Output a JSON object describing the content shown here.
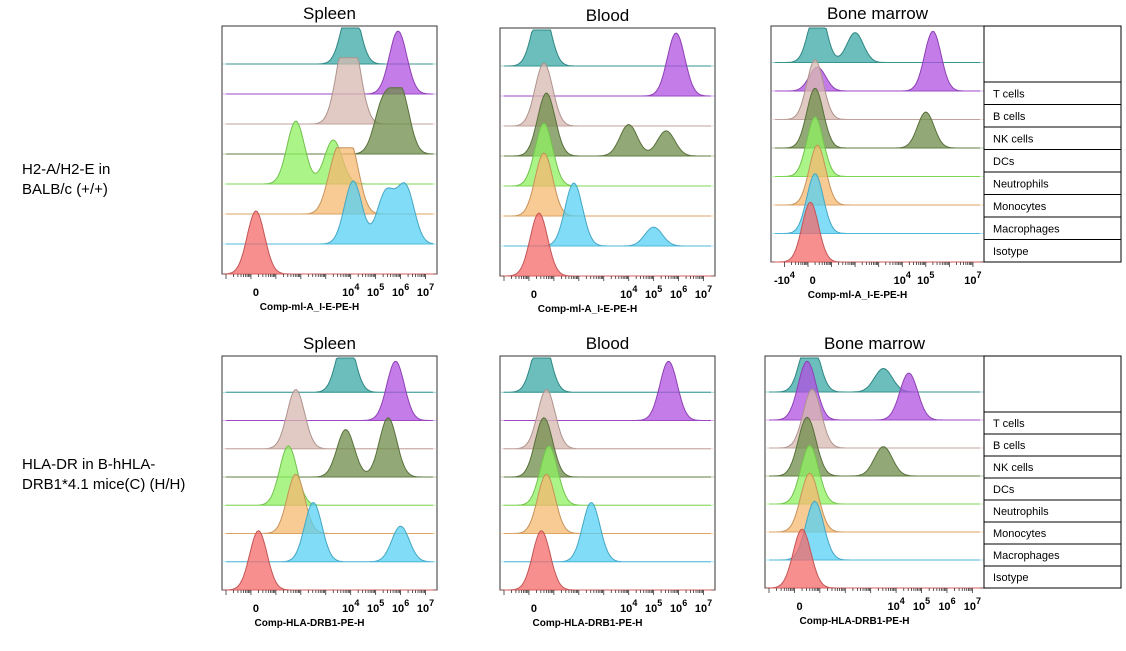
{
  "rows": [
    {
      "label_line1": "H2-A/H2-E in",
      "label_line2": "BALB/c (+/+)",
      "axis_title": "Comp-ml-A_I-E-PE-H"
    },
    {
      "label_line1": "HLA-DR in B-hHLA-",
      "label_line2": "DRB1*4.1 mice(C) (H/H)",
      "axis_title": "Comp-HLA-DRB1-PE-H"
    }
  ],
  "panel_titles": [
    "Spleen",
    "Blood",
    "Bone marrow"
  ],
  "legend": [
    "T cells",
    "B cells",
    "NK cells",
    "DCs",
    "Neutrophils",
    "Monocytes",
    "Macrophages",
    "Isotype"
  ],
  "colors": {
    "T cells": "#3aa8a4",
    "B cells": "#b050e0",
    "NK cells": "#d8b8b0",
    "DCs": "#6e8c4a",
    "Neutrophils": "#8ef060",
    "Monocytes": "#f6b870",
    "Macrophages": "#56d0f4",
    "Isotype": "#f46a6a"
  },
  "chart_data": [
    {
      "type": "area",
      "title": "Spleen",
      "xlabel": "Comp-ml-A_I-E-PE-H",
      "x_scale": "biexponential",
      "x_ticks": [
        "0",
        "10^4",
        "10^5",
        "10^6",
        "10^7"
      ],
      "series": [
        {
          "name": "T cells",
          "peaks": [
            [
              4.0,
              1.0
            ]
          ]
        },
        {
          "name": "B cells",
          "peaks": [
            [
              5.9,
              1.0
            ]
          ]
        },
        {
          "name": "NK cells",
          "peaks": [
            [
              3.7,
              0.9
            ],
            [
              4.1,
              1.0
            ]
          ]
        },
        {
          "name": "DCs",
          "peaks": [
            [
              5.3,
              0.8
            ],
            [
              6.0,
              1.0
            ]
          ]
        },
        {
          "name": "Neutrophils",
          "peaks": [
            [
              1.8,
              1.0
            ],
            [
              3.3,
              0.7
            ]
          ]
        },
        {
          "name": "Monocytes",
          "peaks": [
            [
              3.4,
              0.8
            ],
            [
              4.0,
              1.0
            ]
          ]
        },
        {
          "name": "Macrophages",
          "peaks": [
            [
              4.1,
              1.0
            ],
            [
              5.4,
              0.8
            ],
            [
              6.2,
              0.9
            ]
          ]
        },
        {
          "name": "Isotype",
          "peaks": [
            [
              0.2,
              1.0
            ]
          ]
        }
      ]
    },
    {
      "type": "area",
      "title": "Blood",
      "xlabel": "Comp-ml-A_I-E-PE-H",
      "x_scale": "biexponential",
      "x_ticks": [
        "0",
        "10^4",
        "10^5",
        "10^6",
        "10^7"
      ],
      "series": [
        {
          "name": "T cells",
          "peaks": [
            [
              0.5,
              1.0
            ]
          ]
        },
        {
          "name": "B cells",
          "peaks": [
            [
              5.9,
              1.0
            ]
          ]
        },
        {
          "name": "NK cells",
          "peaks": [
            [
              0.6,
              1.0
            ]
          ]
        },
        {
          "name": "DCs",
          "peaks": [
            [
              0.7,
              1.0
            ],
            [
              4.0,
              0.5
            ],
            [
              5.5,
              0.4
            ]
          ]
        },
        {
          "name": "Neutrophils",
          "peaks": [
            [
              0.6,
              1.0
            ]
          ]
        },
        {
          "name": "Monocytes",
          "peaks": [
            [
              0.6,
              1.0
            ]
          ]
        },
        {
          "name": "Macrophages",
          "peaks": [
            [
              1.8,
              1.0
            ],
            [
              5.0,
              0.3
            ]
          ]
        },
        {
          "name": "Isotype",
          "peaks": [
            [
              0.4,
              1.0
            ]
          ]
        }
      ]
    },
    {
      "type": "area",
      "title": "Bone marrow",
      "xlabel": "Comp-ml-A_I-E-PE-H",
      "x_scale": "biexponential",
      "x_ticks": [
        "-10^4",
        "0",
        "10^4",
        "10^5",
        "10^7"
      ],
      "series": [
        {
          "name": "T cells",
          "peaks": [
            [
              0.4,
              1.0
            ],
            [
              2.0,
              0.5
            ]
          ]
        },
        {
          "name": "B cells",
          "peaks": [
            [
              0.4,
              0.4
            ],
            [
              5.3,
              1.0
            ]
          ]
        },
        {
          "name": "NK cells",
          "peaks": [
            [
              0.3,
              1.0
            ]
          ]
        },
        {
          "name": "DCs",
          "peaks": [
            [
              0.3,
              1.0
            ],
            [
              5.0,
              0.6
            ]
          ]
        },
        {
          "name": "Neutrophils",
          "peaks": [
            [
              0.3,
              1.0
            ]
          ]
        },
        {
          "name": "Monocytes",
          "peaks": [
            [
              0.4,
              1.0
            ]
          ]
        },
        {
          "name": "Macrophages",
          "peaks": [
            [
              0.3,
              1.0
            ]
          ]
        },
        {
          "name": "Isotype",
          "peaks": [
            [
              0.1,
              1.0
            ]
          ]
        }
      ]
    },
    {
      "type": "area",
      "title": "Spleen",
      "xlabel": "Comp-HLA-DRB1-PE-H",
      "x_scale": "biexponential",
      "x_ticks": [
        "0",
        "10^4",
        "10^5",
        "10^6",
        "10^7"
      ],
      "series": [
        {
          "name": "T cells",
          "peaks": [
            [
              3.8,
              1.0
            ]
          ]
        },
        {
          "name": "B cells",
          "peaks": [
            [
              5.8,
              1.0
            ]
          ]
        },
        {
          "name": "NK cells",
          "peaks": [
            [
              1.8,
              1.0
            ]
          ]
        },
        {
          "name": "DCs",
          "peaks": [
            [
              3.8,
              0.8
            ],
            [
              5.5,
              1.0
            ]
          ]
        },
        {
          "name": "Neutrophils",
          "peaks": [
            [
              1.5,
              1.0
            ]
          ]
        },
        {
          "name": "Monocytes",
          "peaks": [
            [
              1.8,
              1.0
            ]
          ]
        },
        {
          "name": "Macrophages",
          "peaks": [
            [
              2.5,
              1.0
            ],
            [
              6.0,
              0.6
            ]
          ]
        },
        {
          "name": "Isotype",
          "peaks": [
            [
              0.3,
              1.0
            ]
          ]
        }
      ]
    },
    {
      "type": "area",
      "title": "Blood",
      "xlabel": "Comp-HLA-DRB1-PE-H",
      "x_scale": "biexponential",
      "x_ticks": [
        "0",
        "10^4",
        "10^5",
        "10^6",
        "10^7"
      ],
      "series": [
        {
          "name": "T cells",
          "peaks": [
            [
              0.5,
              1.0
            ]
          ]
        },
        {
          "name": "B cells",
          "peaks": [
            [
              5.6,
              1.0
            ]
          ]
        },
        {
          "name": "NK cells",
          "peaks": [
            [
              0.7,
              1.0
            ]
          ]
        },
        {
          "name": "DCs",
          "peaks": [
            [
              0.6,
              1.0
            ]
          ]
        },
        {
          "name": "Neutrophils",
          "peaks": [
            [
              0.8,
              1.0
            ]
          ]
        },
        {
          "name": "Monocytes",
          "peaks": [
            [
              0.7,
              1.0
            ]
          ]
        },
        {
          "name": "Macrophages",
          "peaks": [
            [
              2.5,
              1.0
            ]
          ]
        },
        {
          "name": "Isotype",
          "peaks": [
            [
              0.5,
              1.0
            ]
          ]
        }
      ]
    },
    {
      "type": "area",
      "title": "Bone marrow",
      "xlabel": "Comp-HLA-DRB1-PE-H",
      "x_scale": "biexponential",
      "x_ticks": [
        "0",
        "10^4",
        "10^5",
        "10^6",
        "10^7"
      ],
      "series": [
        {
          "name": "T cells",
          "peaks": [
            [
              0.6,
              1.0
            ],
            [
              3.5,
              0.4
            ]
          ]
        },
        {
          "name": "B cells",
          "peaks": [
            [
              0.5,
              1.0
            ],
            [
              4.5,
              0.8
            ]
          ]
        },
        {
          "name": "NK cells",
          "peaks": [
            [
              0.7,
              1.0
            ]
          ]
        },
        {
          "name": "DCs",
          "peaks": [
            [
              0.5,
              1.0
            ],
            [
              3.5,
              0.5
            ]
          ]
        },
        {
          "name": "Neutrophils",
          "peaks": [
            [
              0.6,
              1.0
            ]
          ]
        },
        {
          "name": "Monocytes",
          "peaks": [
            [
              0.6,
              1.0
            ]
          ]
        },
        {
          "name": "Macrophages",
          "peaks": [
            [
              0.8,
              1.0
            ]
          ]
        },
        {
          "name": "Isotype",
          "peaks": [
            [
              0.3,
              1.0
            ]
          ]
        }
      ]
    }
  ]
}
